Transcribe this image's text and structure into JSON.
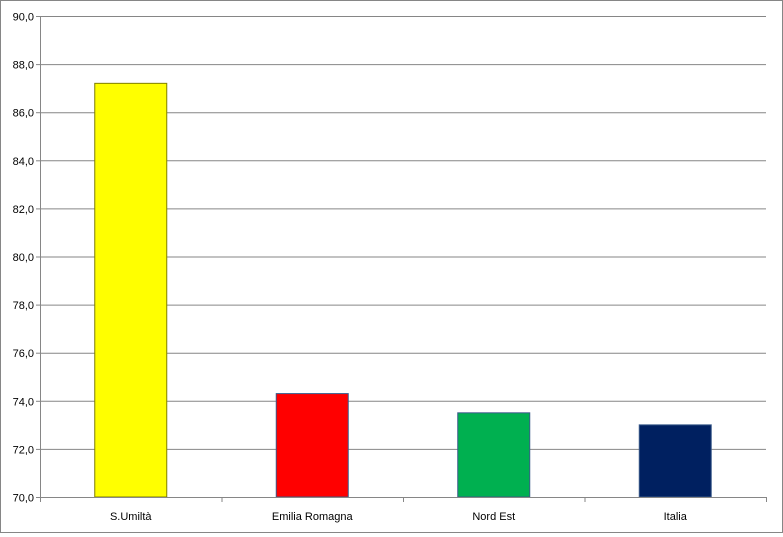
{
  "chart_data": {
    "type": "bar",
    "title": "",
    "xlabel": "",
    "ylabel": "",
    "categories": [
      "S.Umiltà",
      "Emilia  Romagna",
      "Nord Est",
      "Italia"
    ],
    "values": [
      87.2,
      74.3,
      73.5,
      73.0
    ],
    "colors": [
      "#FFFF00",
      "#FF0000",
      "#00B050",
      "#002060"
    ],
    "ylim": [
      70,
      90
    ],
    "yticks": [
      "70,0",
      "72,0",
      "74,0",
      "76,0",
      "78,0",
      "80,0",
      "82,0",
      "84,0",
      "86,0",
      "88,0",
      "90,0"
    ],
    "grid": true,
    "legend": "none"
  }
}
